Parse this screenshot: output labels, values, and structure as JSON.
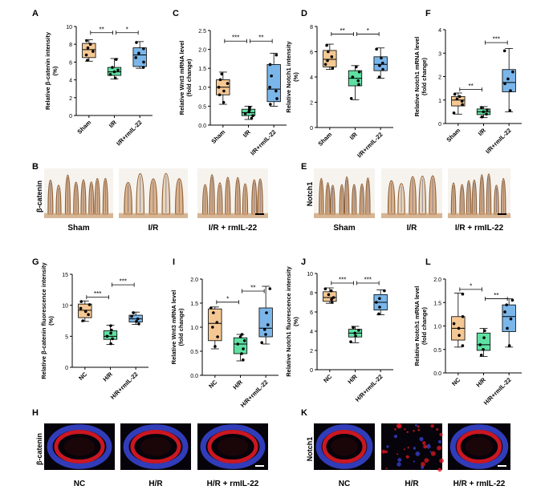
{
  "colors": {
    "sham": "#f5c893",
    "ir": "#5fe0a2",
    "rmil": "#7ab6ea",
    "axis": "#000000",
    "tissue_bg": "#f6f3ee",
    "tissue_stain": "#8a5a2e",
    "tissue_nuclei": "#4a5078",
    "if_bg": "#06030a",
    "if_red": "#e01a24",
    "if_blue": "#3a46d8"
  },
  "chart_data": [
    {
      "id": "A",
      "panel_label": "A",
      "type": "box",
      "ylabel": "Relative β-catenin intensity (%)",
      "ylim": [
        0,
        10
      ],
      "yticks": [
        "0",
        "2",
        "4",
        "6",
        "8",
        "10"
      ],
      "categories": [
        "Sham",
        "I/R",
        "I/R+rmIL-22"
      ],
      "groups": [
        {
          "q1": 6.5,
          "median": 7.4,
          "q3": 8.1,
          "min": 6.1,
          "max": 8.5,
          "points": [
            6.2,
            6.8,
            7.2,
            7.6,
            8.0,
            8.4
          ]
        },
        {
          "q1": 4.5,
          "median": 4.9,
          "q3": 5.4,
          "min": 4.1,
          "max": 6.4,
          "points": [
            4.2,
            4.6,
            4.9,
            5.1,
            5.4,
            6.3
          ]
        },
        {
          "q1": 5.5,
          "median": 6.8,
          "q3": 7.6,
          "min": 5.3,
          "max": 8.3,
          "points": [
            5.4,
            6.0,
            6.5,
            7.0,
            7.5,
            8.2
          ]
        }
      ],
      "significance": [
        {
          "from": 0,
          "to": 1,
          "label": "**",
          "y": 9.3
        },
        {
          "from": 1,
          "to": 2,
          "label": "*",
          "y": 9.3
        }
      ]
    },
    {
      "id": "C",
      "panel_label": "C",
      "type": "box",
      "ylabel": "Relative Wnt3 mRNA level (fold change)",
      "ylim": [
        0,
        2.5
      ],
      "yticks": [
        "0.0",
        "0.5",
        "1.0",
        "1.5",
        "2.0",
        "2.5"
      ],
      "categories": [
        "Sham",
        "I/R",
        "I/R+rmIL-22"
      ],
      "groups": [
        {
          "q1": 0.8,
          "median": 1.0,
          "q3": 1.2,
          "min": 0.55,
          "max": 1.4,
          "points": [
            0.6,
            0.8,
            0.9,
            1.0,
            1.1,
            1.2,
            1.35
          ]
        },
        {
          "q1": 0.25,
          "median": 0.33,
          "q3": 0.42,
          "min": 0.15,
          "max": 0.5,
          "points": [
            0.18,
            0.25,
            0.3,
            0.35,
            0.4,
            0.47
          ]
        },
        {
          "q1": 0.62,
          "median": 0.95,
          "q3": 1.6,
          "min": 0.5,
          "max": 1.9,
          "points": [
            0.55,
            0.7,
            0.9,
            1.0,
            1.3,
            1.6,
            1.85
          ]
        }
      ],
      "significance": [
        {
          "from": 0,
          "to": 1,
          "label": "***",
          "y": 2.22
        },
        {
          "from": 1,
          "to": 2,
          "label": "**",
          "y": 2.22
        }
      ]
    },
    {
      "id": "D",
      "panel_label": "D",
      "type": "box",
      "ylabel": "Relative Notch1 intensity (%)",
      "ylim": [
        0,
        8
      ],
      "yticks": [
        "0",
        "2",
        "4",
        "6",
        "8"
      ],
      "categories": [
        "Sham",
        "I/R",
        "I/R+rmIL-22"
      ],
      "groups": [
        {
          "q1": 4.8,
          "median": 5.4,
          "q3": 6.1,
          "min": 4.6,
          "max": 6.6,
          "points": [
            4.7,
            5.0,
            5.3,
            5.6,
            6.0,
            6.5
          ]
        },
        {
          "q1": 3.3,
          "median": 3.9,
          "q3": 4.5,
          "min": 2.2,
          "max": 4.9,
          "points": [
            2.3,
            3.4,
            3.7,
            4.0,
            4.4,
            4.8
          ]
        },
        {
          "q1": 4.5,
          "median": 5.0,
          "q3": 5.6,
          "min": 3.9,
          "max": 6.3,
          "points": [
            4.0,
            4.6,
            4.9,
            5.1,
            5.5,
            6.2
          ]
        }
      ],
      "significance": [
        {
          "from": 0,
          "to": 1,
          "label": "**",
          "y": 7.4
        },
        {
          "from": 1,
          "to": 2,
          "label": "*",
          "y": 7.4
        }
      ]
    },
    {
      "id": "F",
      "panel_label": "F",
      "type": "box",
      "ylabel": "Relative Notch1 mRNA level (fold change)",
      "ylim": [
        0,
        4
      ],
      "yticks": [
        "0",
        "1",
        "2",
        "3",
        "4"
      ],
      "categories": [
        "Sham",
        "I/R",
        "I/R+rmIL-22"
      ],
      "groups": [
        {
          "q1": 0.75,
          "median": 1.0,
          "q3": 1.15,
          "min": 0.4,
          "max": 1.3,
          "points": [
            0.45,
            0.8,
            0.95,
            1.05,
            1.15,
            1.25
          ]
        },
        {
          "q1": 0.38,
          "median": 0.5,
          "q3": 0.62,
          "min": 0.25,
          "max": 0.72,
          "points": [
            0.28,
            0.4,
            0.5,
            0.58,
            0.68
          ]
        },
        {
          "q1": 1.35,
          "median": 1.75,
          "q3": 2.3,
          "min": 0.5,
          "max": 3.2,
          "points": [
            0.55,
            1.4,
            1.7,
            1.9,
            2.2,
            3.1
          ]
        }
      ],
      "significance": [
        {
          "from": 0,
          "to": 1,
          "label": "**",
          "y": 1.45
        },
        {
          "from": 1,
          "to": 2,
          "label": "***",
          "y": 3.45
        }
      ]
    },
    {
      "id": "G",
      "panel_label": "G",
      "type": "box",
      "ylabel": "Relative β-catenin fluorescence intensity (%)",
      "ylim": [
        0,
        15
      ],
      "yticks": [
        "0",
        "5",
        "10",
        "15"
      ],
      "categories": [
        "NC",
        "H/R",
        "H/R+rmIL-22"
      ],
      "groups": [
        {
          "q1": 8.0,
          "median": 9.2,
          "q3": 10.2,
          "min": 7.4,
          "max": 10.7,
          "points": [
            7.5,
            8.5,
            9.0,
            9.5,
            10.1,
            10.6
          ]
        },
        {
          "q1": 4.5,
          "median": 5.0,
          "q3": 5.9,
          "min": 3.7,
          "max": 6.8,
          "points": [
            3.8,
            4.6,
            5.0,
            5.5,
            6.0,
            6.7
          ]
        },
        {
          "q1": 7.3,
          "median": 7.8,
          "q3": 8.4,
          "min": 6.9,
          "max": 8.9,
          "points": [
            7.0,
            7.4,
            7.8,
            8.2,
            8.8
          ]
        }
      ],
      "significance": [
        {
          "from": 0,
          "to": 1,
          "label": "***",
          "y": 11.3
        },
        {
          "from": 1,
          "to": 2,
          "label": "***",
          "y": 13.3
        }
      ]
    },
    {
      "id": "I",
      "panel_label": "I",
      "type": "box",
      "ylabel": "Relative Wnt3 mRNA level (fold change)",
      "ylim": [
        0,
        2.0
      ],
      "yticks": [
        "0.0",
        "0.5",
        "1.0",
        "1.5",
        "2.0"
      ],
      "categories": [
        "NC",
        "H/R",
        "H/R+rmIL-22"
      ],
      "groups": [
        {
          "q1": 0.72,
          "median": 1.08,
          "q3": 1.38,
          "min": 0.55,
          "max": 1.42,
          "points": [
            0.6,
            0.8,
            1.0,
            1.1,
            1.3,
            1.4
          ]
        },
        {
          "q1": 0.45,
          "median": 0.65,
          "q3": 0.78,
          "min": 0.3,
          "max": 0.85,
          "points": [
            0.32,
            0.45,
            0.55,
            0.65,
            0.72,
            0.8,
            0.85
          ]
        },
        {
          "q1": 0.8,
          "median": 0.98,
          "q3": 1.4,
          "min": 0.65,
          "max": 1.85,
          "points": [
            0.68,
            0.85,
            0.95,
            1.05,
            1.3,
            1.8
          ]
        }
      ],
      "significance": [
        {
          "from": 0,
          "to": 1,
          "label": "*",
          "y": 1.52
        },
        {
          "from": 1,
          "to": 2,
          "label": "**",
          "y": 1.75
        }
      ]
    },
    {
      "id": "J",
      "panel_label": "J",
      "type": "box",
      "ylabel": "Relative Notch1 fluorescence intensity (%)",
      "ylim": [
        0,
        10
      ],
      "yticks": [
        "0",
        "2",
        "4",
        "6",
        "8",
        "10"
      ],
      "categories": [
        "NC",
        "H/R",
        "H/R+rmIL-22"
      ],
      "groups": [
        {
          "q1": 7.1,
          "median": 7.5,
          "q3": 8.1,
          "min": 6.9,
          "max": 8.5,
          "points": [
            7.0,
            7.3,
            7.5,
            7.8,
            8.2,
            8.4
          ]
        },
        {
          "q1": 3.4,
          "median": 3.8,
          "q3": 4.2,
          "min": 2.8,
          "max": 4.5,
          "points": [
            2.9,
            3.5,
            3.8,
            4.1,
            4.4
          ]
        },
        {
          "q1": 6.2,
          "median": 7.0,
          "q3": 7.8,
          "min": 5.7,
          "max": 8.3,
          "points": [
            5.8,
            6.5,
            7.0,
            7.4,
            8.2
          ]
        }
      ],
      "significance": [
        {
          "from": 0,
          "to": 1,
          "label": "***",
          "y": 9.0
        },
        {
          "from": 1,
          "to": 2,
          "label": "***",
          "y": 9.0
        }
      ]
    },
    {
      "id": "L",
      "panel_label": "L",
      "type": "box",
      "ylabel": "Relative Notch1 mRNA level (fold change)",
      "ylim": [
        0,
        2.0
      ],
      "yticks": [
        "0.0",
        "0.5",
        "1.0",
        "1.5",
        "2.0"
      ],
      "categories": [
        "NC",
        "H/R",
        "H/R+rmIL-22"
      ],
      "groups": [
        {
          "q1": 0.7,
          "median": 0.95,
          "q3": 1.2,
          "min": 0.55,
          "max": 1.7,
          "points": [
            0.58,
            0.8,
            0.95,
            1.05,
            1.2,
            1.68
          ]
        },
        {
          "q1": 0.48,
          "median": 0.6,
          "q3": 0.85,
          "min": 0.35,
          "max": 0.95,
          "points": [
            0.38,
            0.5,
            0.6,
            0.75,
            0.9
          ]
        },
        {
          "q1": 0.88,
          "median": 1.2,
          "q3": 1.45,
          "min": 0.55,
          "max": 1.58,
          "points": [
            0.58,
            0.95,
            1.15,
            1.3,
            1.45,
            1.55
          ]
        }
      ],
      "significance": [
        {
          "from": 0,
          "to": 1,
          "label": "*",
          "y": 1.78
        },
        {
          "from": 1,
          "to": 2,
          "label": "**",
          "y": 1.58
        }
      ]
    }
  ],
  "micrographs": [
    {
      "id": "B",
      "panel_label": "B",
      "stain": "β-catenin",
      "kind": "ihc",
      "captions": [
        "Sham",
        "I/R",
        "I/R + rmIL-22"
      ]
    },
    {
      "id": "E",
      "panel_label": "E",
      "stain": "Notch1",
      "kind": "ihc",
      "captions": [
        "Sham",
        "I/R",
        "I/R + rmIL-22"
      ]
    },
    {
      "id": "H",
      "panel_label": "H",
      "stain": "β-catenin",
      "kind": "if",
      "captions": [
        "NC",
        "H/R",
        "H/R + rmIL-22"
      ]
    },
    {
      "id": "K",
      "panel_label": "K",
      "stain": "Notch1",
      "kind": "if",
      "captions": [
        "NC",
        "H/R",
        "H/R + rmIL-22"
      ]
    }
  ]
}
